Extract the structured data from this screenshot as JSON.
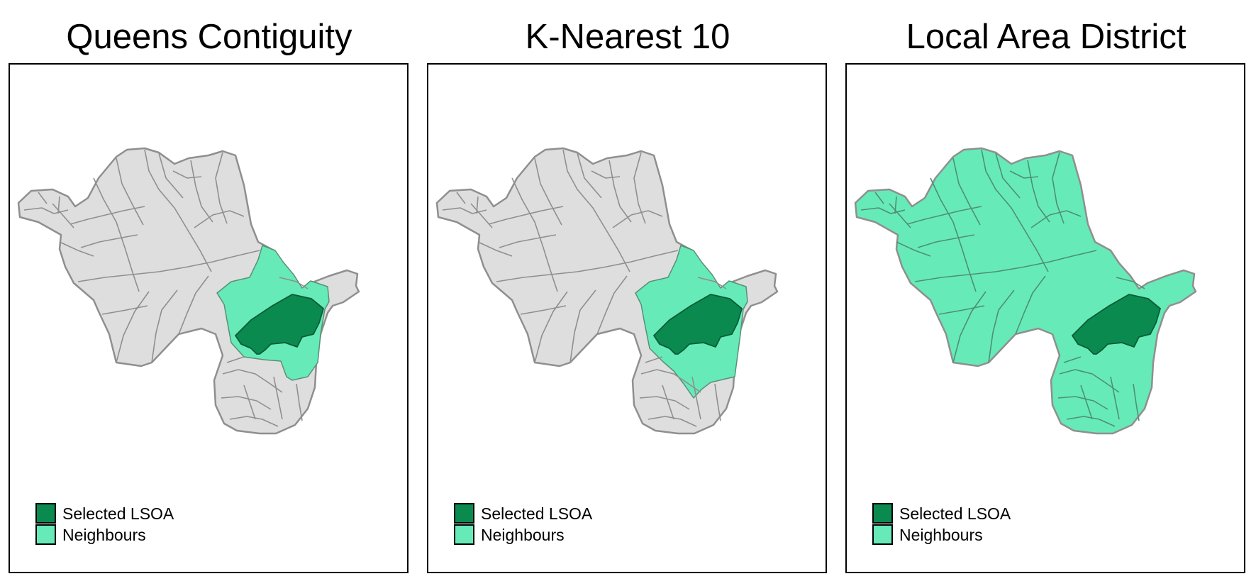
{
  "colors": {
    "selected": "#0b8a4f",
    "neighbour": "#66ebb8",
    "other": "#dedede",
    "outline": "#8f8f8f",
    "frame": "#000000"
  },
  "panels": [
    {
      "title": "Queens Contiguity",
      "mode": "queens",
      "legend": {
        "selected_label": "Selected LSOA",
        "neighbour_label": "Neighbours"
      }
    },
    {
      "title": "K-Nearest 10",
      "mode": "knn",
      "legend": {
        "selected_label": "Selected LSOA",
        "neighbour_label": "Neighbours"
      }
    },
    {
      "title": "Local Area District",
      "mode": "district",
      "legend": {
        "selected_label": "Selected LSOA",
        "neighbour_label": "Neighbours"
      }
    }
  ]
}
